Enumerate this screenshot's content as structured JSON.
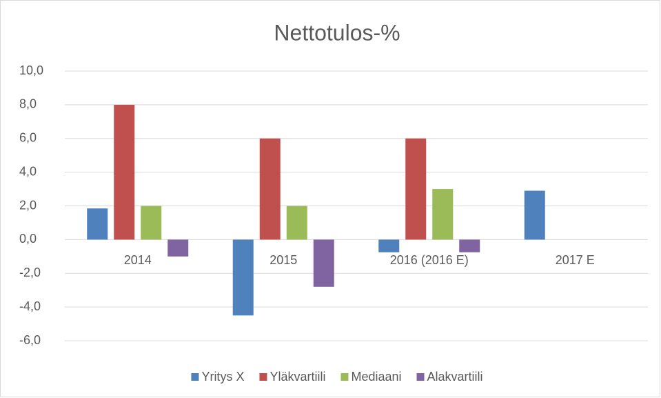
{
  "chart_data": {
    "type": "bar",
    "title": "Nettotulos-%",
    "categories": [
      "2014",
      "2015",
      "2016 (2016 E)",
      "2017 E"
    ],
    "series": [
      {
        "name": "Yritys X",
        "color": "#4f81bd",
        "values": [
          1.85,
          -4.5,
          -0.75,
          2.9
        ]
      },
      {
        "name": "Yläkvartiili",
        "color": "#c0504d",
        "values": [
          8,
          6,
          6,
          null
        ]
      },
      {
        "name": "Mediaani",
        "color": "#9bbb59",
        "values": [
          2,
          2,
          3,
          null
        ]
      },
      {
        "name": "Alakvartiili",
        "color": "#8064a2",
        "values": [
          -1,
          -2.8,
          -0.75,
          null
        ]
      }
    ],
    "ylim": [
      -6,
      10
    ],
    "yticks": [
      {
        "value": -6,
        "label": "-6,0"
      },
      {
        "value": -4,
        "label": "-4,0"
      },
      {
        "value": -2,
        "label": "-2,0"
      },
      {
        "value": 0,
        "label": "0,0"
      },
      {
        "value": 2,
        "label": "2,0"
      },
      {
        "value": 4,
        "label": "4,0"
      },
      {
        "value": 6,
        "label": "6,0"
      },
      {
        "value": 8,
        "label": "8,0"
      },
      {
        "value": 10,
        "label": "10,0"
      }
    ],
    "grid": true,
    "legend": "bottom"
  }
}
